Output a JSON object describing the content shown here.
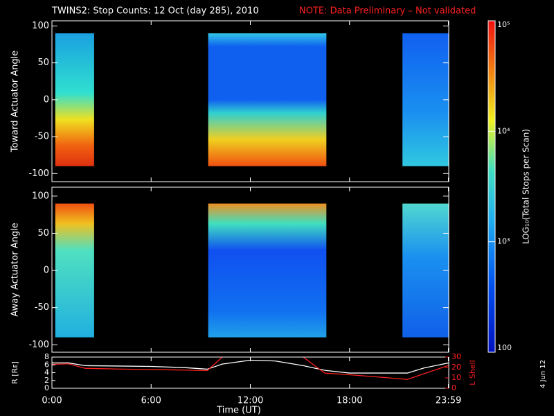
{
  "chart_data": [
    {
      "type": "heatmap",
      "title": "TWINS2: Stop Counts: 12 Oct (day 285), 2010",
      "annotation": "NOTE: Data Preliminary – Not validated",
      "ylabel": "Toward Actuator Angle",
      "ylim": [
        -111,
        107
      ],
      "yticks": [
        -100,
        -50,
        0,
        50,
        100
      ],
      "xlim": [
        0,
        24
      ],
      "x_start": [
        0.2,
        9.45,
        21.2
      ],
      "x_end": [
        2.55,
        16.6,
        24
      ],
      "angle_range": [
        -90,
        90
      ]
    },
    {
      "type": "heatmap",
      "ylabel": "Away Actuator Angle",
      "ylim": [
        -110,
        112
      ],
      "yticks": [
        -100,
        -50,
        0,
        50,
        100
      ],
      "xlim": [
        0,
        24
      ],
      "x_start": [
        0.2,
        9.45,
        21.2
      ],
      "x_end": [
        2.55,
        16.6,
        24
      ],
      "angle_range": [
        -90,
        90
      ]
    },
    {
      "type": "line",
      "xlabel": "Time (UT)",
      "xlim": [
        0,
        24
      ],
      "xticks": [
        {
          "value": 0,
          "label": "0:00"
        },
        {
          "value": 6,
          "label": "6:00"
        },
        {
          "value": 12,
          "label": "12:00"
        },
        {
          "value": 18,
          "label": "18:00"
        },
        {
          "value": 23.98,
          "label": "23:59"
        }
      ],
      "ylabel": "R [Rᴇ]",
      "ylim": [
        0,
        8
      ],
      "yticks": [
        0,
        2,
        4,
        6,
        8
      ],
      "y2label": "L Shell",
      "y2lim": [
        0,
        30
      ],
      "y2ticks": [
        0,
        10,
        20,
        30
      ],
      "x": [
        0,
        1,
        2,
        4,
        6,
        8,
        9.4,
        10.3,
        12,
        13.5,
        15.2,
        16.5,
        18,
        20,
        21.5,
        22.5,
        24
      ],
      "series": [
        {
          "name": "R",
          "color": "#ffffff",
          "values": [
            6.5,
            6.5,
            5.8,
            5.7,
            5.6,
            5.3,
            4.9,
            6.2,
            7.2,
            7.0,
            5.8,
            4.6,
            3.9,
            3.9,
            3.9,
            5.2,
            6.5
          ]
        },
        {
          "name": "L Shell",
          "color": "#ff2020",
          "axis": "y2",
          "values": [
            23,
            23.5,
            19.2,
            18.5,
            18,
            17.5,
            17,
            30,
            null,
            null,
            30,
            14.6,
            13,
            10.5,
            8.5,
            14,
            22
          ]
        }
      ]
    },
    {
      "type": "colorbar",
      "label": "LOG₁₀(Total Stops per Scan)",
      "log": true,
      "clim": [
        100,
        100000
      ],
      "ticks": [
        {
          "value": 100000,
          "label": "10⁵"
        },
        {
          "value": 10000,
          "label": "10⁴"
        },
        {
          "value": 1000,
          "label": "10³"
        },
        100
      ]
    },
    {
      "type": "text",
      "date_stamp": "4 Jun 12"
    }
  ]
}
